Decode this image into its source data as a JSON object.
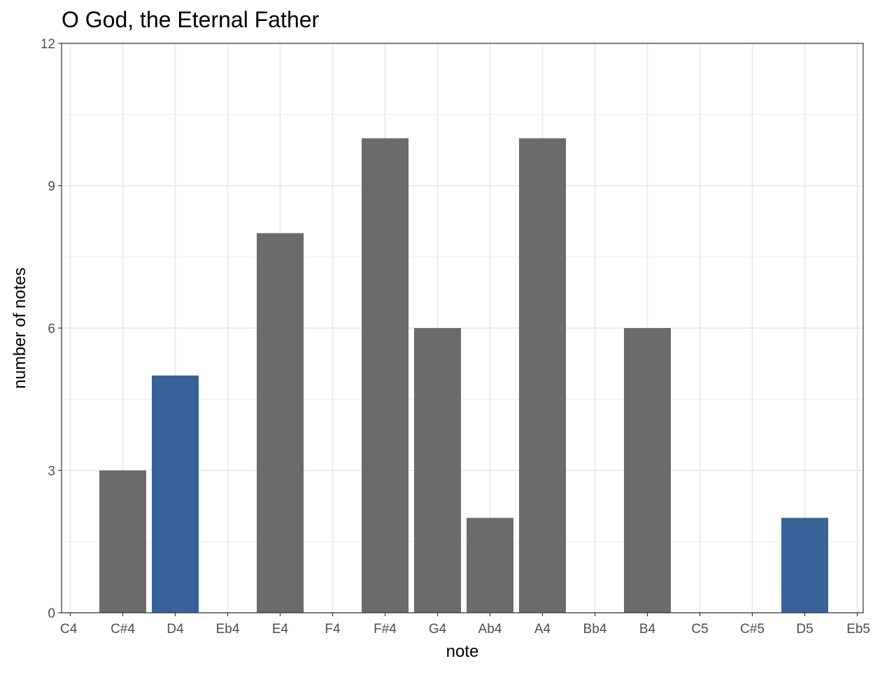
{
  "chart_data": {
    "type": "bar",
    "title": "O God, the Eternal Father",
    "xlabel": "note",
    "ylabel": "number of notes",
    "categories": [
      "C4",
      "C#4",
      "D4",
      "Eb4",
      "E4",
      "F4",
      "F#4",
      "G4",
      "Ab4",
      "A4",
      "Bb4",
      "B4",
      "C5",
      "C#5",
      "D5",
      "Eb5"
    ],
    "values": [
      0,
      3,
      5,
      0,
      8,
      0,
      10,
      6,
      2,
      10,
      0,
      6,
      0,
      0,
      2,
      0
    ],
    "highlighted": [
      "D4",
      "D5"
    ],
    "ylim": [
      0,
      12
    ],
    "yticks": [
      0,
      3,
      6,
      9,
      12
    ],
    "grid": true,
    "legend": "none",
    "colors": {
      "bar": "#6b6b6b",
      "highlight": "#386399",
      "grid": "#ebebeb",
      "panel_border": "#333333",
      "tick_text": "#4d4d4d"
    }
  }
}
